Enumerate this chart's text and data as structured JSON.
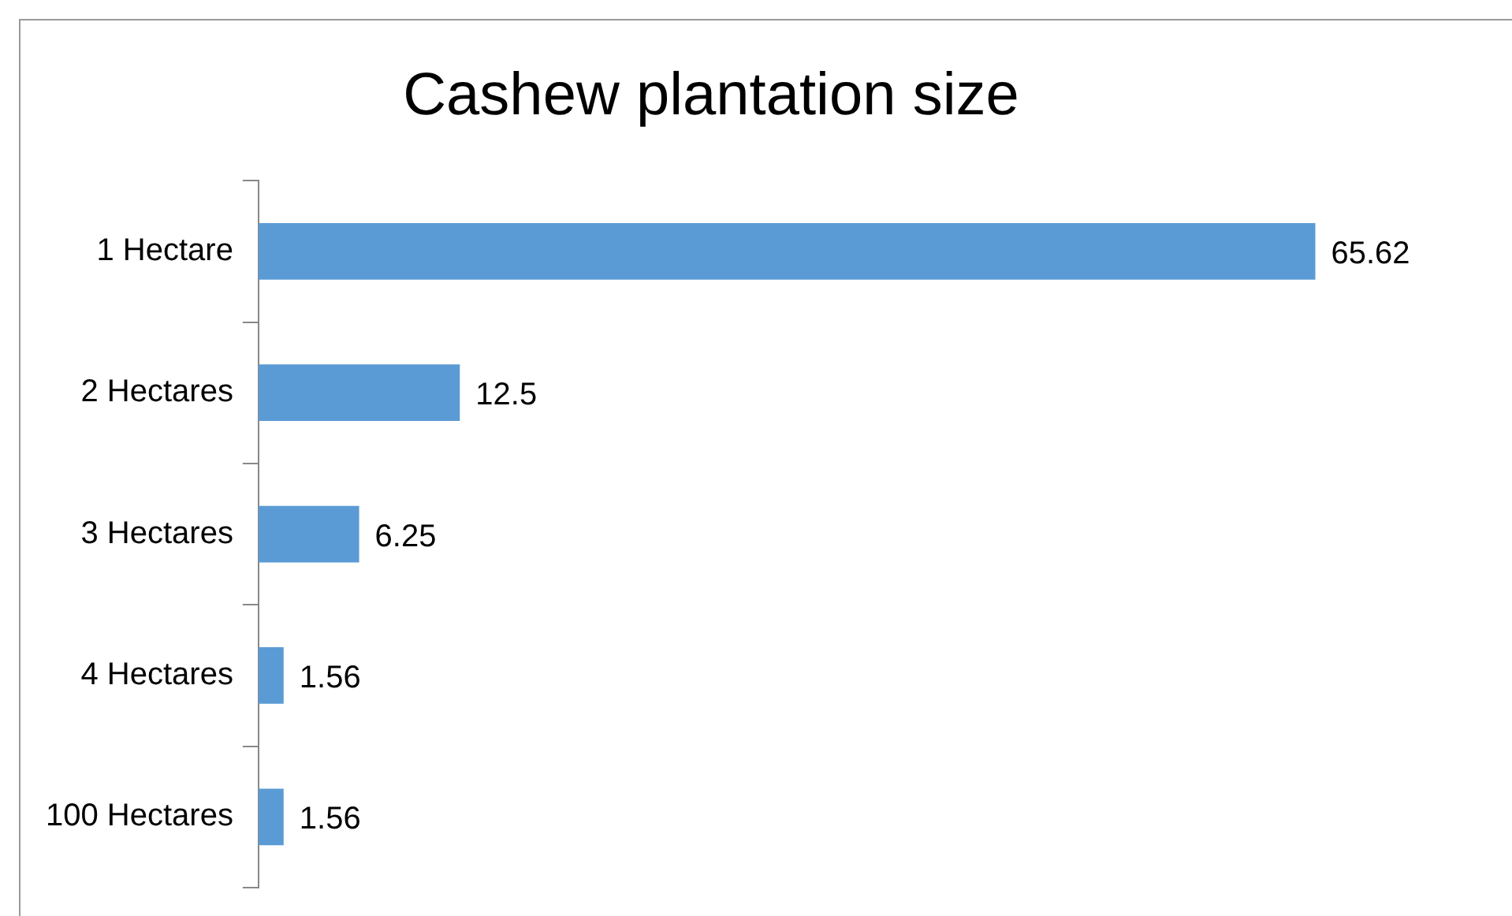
{
  "chart_data": {
    "type": "bar",
    "orientation": "horizontal",
    "title": "Cashew plantation size",
    "categories": [
      "1 Hectare",
      "2 Hectares",
      "3 Hectares",
      "4 Hectares",
      "100 Hectares"
    ],
    "values": [
      65.62,
      12.5,
      6.25,
      1.56,
      1.56
    ],
    "color": "#5b9bd5",
    "data_labels": true
  }
}
